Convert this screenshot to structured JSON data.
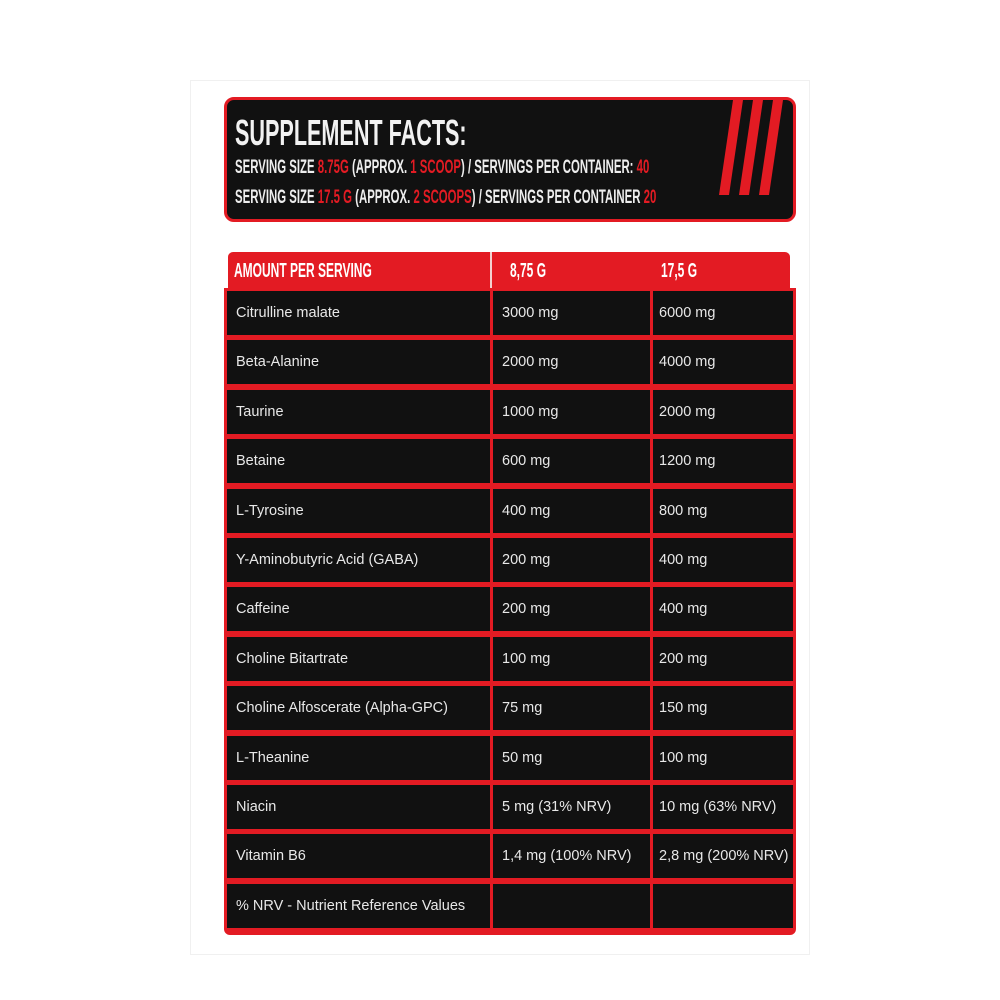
{
  "header": {
    "title": "SUPPLEMENT FACTS:",
    "line1": {
      "a": "SERVING SIZE ",
      "b": "8.75G",
      "c": " (APPROX. ",
      "d": "1 SCOOP",
      "e": ") / SERVINGS PER CONTAINER: ",
      "f": "40"
    },
    "line2": {
      "a": "SERVING SIZE ",
      "b": "17.5 G",
      "c": " (APPROX. ",
      "d": "2 SCOOPS",
      "e": ") / SERVINGS PER CONTAINER ",
      "f": "20"
    }
  },
  "colors": {
    "accent": "#e31b23",
    "panel": "#111111"
  },
  "table": {
    "columns": [
      "AMOUNT PER SERVING",
      "8,75 G",
      "17,5 G"
    ],
    "rows": [
      [
        "Citrulline malate",
        "3000 mg",
        "6000 mg"
      ],
      [
        "Beta-Alanine",
        "2000 mg",
        "4000 mg"
      ],
      [
        "Taurine",
        "1000 mg",
        "2000 mg"
      ],
      [
        "Betaine",
        "600 mg",
        "1200 mg"
      ],
      [
        "L-Tyrosine",
        "400 mg",
        "800 mg"
      ],
      [
        "Y-Aminobutyric Acid (GABA)",
        "200 mg",
        "400 mg"
      ],
      [
        "Caffeine",
        "200 mg",
        "400 mg"
      ],
      [
        "Choline Bitartrate",
        "100 mg",
        "200 mg"
      ],
      [
        "Choline Alfoscerate (Alpha-GPC)",
        "75 mg",
        "150 mg"
      ],
      [
        "L-Theanine",
        "50 mg",
        "100 mg"
      ],
      [
        "Niacin",
        "5 mg (31% NRV)",
        "10 mg (63% NRV)"
      ],
      [
        "Vitamin B6",
        "1,4 mg (100% NRV)",
        "2,8 mg (200% NRV)"
      ],
      [
        "% NRV - Nutrient Reference Values",
        "",
        ""
      ]
    ]
  }
}
